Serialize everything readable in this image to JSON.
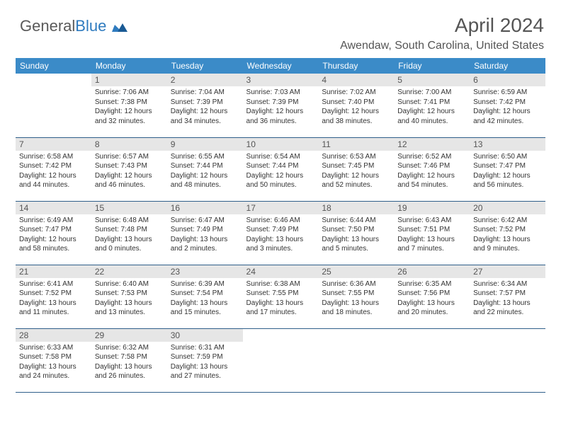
{
  "brand": {
    "part1": "General",
    "part2": "Blue"
  },
  "title": "April 2024",
  "location": "Awendaw, South Carolina, United States",
  "colors": {
    "header_bg": "#3b8bc8",
    "header_text": "#ffffff",
    "daynum_bg": "#e6e6e6",
    "border": "#2f5f8a",
    "text": "#333333"
  },
  "table": {
    "columns": [
      "Sunday",
      "Monday",
      "Tuesday",
      "Wednesday",
      "Thursday",
      "Friday",
      "Saturday"
    ],
    "rows": [
      [
        null,
        {
          "n": "1",
          "sr": "Sunrise: 7:06 AM",
          "ss": "Sunset: 7:38 PM",
          "dl": "Daylight: 12 hours and 32 minutes."
        },
        {
          "n": "2",
          "sr": "Sunrise: 7:04 AM",
          "ss": "Sunset: 7:39 PM",
          "dl": "Daylight: 12 hours and 34 minutes."
        },
        {
          "n": "3",
          "sr": "Sunrise: 7:03 AM",
          "ss": "Sunset: 7:39 PM",
          "dl": "Daylight: 12 hours and 36 minutes."
        },
        {
          "n": "4",
          "sr": "Sunrise: 7:02 AM",
          "ss": "Sunset: 7:40 PM",
          "dl": "Daylight: 12 hours and 38 minutes."
        },
        {
          "n": "5",
          "sr": "Sunrise: 7:00 AM",
          "ss": "Sunset: 7:41 PM",
          "dl": "Daylight: 12 hours and 40 minutes."
        },
        {
          "n": "6",
          "sr": "Sunrise: 6:59 AM",
          "ss": "Sunset: 7:42 PM",
          "dl": "Daylight: 12 hours and 42 minutes."
        }
      ],
      [
        {
          "n": "7",
          "sr": "Sunrise: 6:58 AM",
          "ss": "Sunset: 7:42 PM",
          "dl": "Daylight: 12 hours and 44 minutes."
        },
        {
          "n": "8",
          "sr": "Sunrise: 6:57 AM",
          "ss": "Sunset: 7:43 PM",
          "dl": "Daylight: 12 hours and 46 minutes."
        },
        {
          "n": "9",
          "sr": "Sunrise: 6:55 AM",
          "ss": "Sunset: 7:44 PM",
          "dl": "Daylight: 12 hours and 48 minutes."
        },
        {
          "n": "10",
          "sr": "Sunrise: 6:54 AM",
          "ss": "Sunset: 7:44 PM",
          "dl": "Daylight: 12 hours and 50 minutes."
        },
        {
          "n": "11",
          "sr": "Sunrise: 6:53 AM",
          "ss": "Sunset: 7:45 PM",
          "dl": "Daylight: 12 hours and 52 minutes."
        },
        {
          "n": "12",
          "sr": "Sunrise: 6:52 AM",
          "ss": "Sunset: 7:46 PM",
          "dl": "Daylight: 12 hours and 54 minutes."
        },
        {
          "n": "13",
          "sr": "Sunrise: 6:50 AM",
          "ss": "Sunset: 7:47 PM",
          "dl": "Daylight: 12 hours and 56 minutes."
        }
      ],
      [
        {
          "n": "14",
          "sr": "Sunrise: 6:49 AM",
          "ss": "Sunset: 7:47 PM",
          "dl": "Daylight: 12 hours and 58 minutes."
        },
        {
          "n": "15",
          "sr": "Sunrise: 6:48 AM",
          "ss": "Sunset: 7:48 PM",
          "dl": "Daylight: 13 hours and 0 minutes."
        },
        {
          "n": "16",
          "sr": "Sunrise: 6:47 AM",
          "ss": "Sunset: 7:49 PM",
          "dl": "Daylight: 13 hours and 2 minutes."
        },
        {
          "n": "17",
          "sr": "Sunrise: 6:46 AM",
          "ss": "Sunset: 7:49 PM",
          "dl": "Daylight: 13 hours and 3 minutes."
        },
        {
          "n": "18",
          "sr": "Sunrise: 6:44 AM",
          "ss": "Sunset: 7:50 PM",
          "dl": "Daylight: 13 hours and 5 minutes."
        },
        {
          "n": "19",
          "sr": "Sunrise: 6:43 AM",
          "ss": "Sunset: 7:51 PM",
          "dl": "Daylight: 13 hours and 7 minutes."
        },
        {
          "n": "20",
          "sr": "Sunrise: 6:42 AM",
          "ss": "Sunset: 7:52 PM",
          "dl": "Daylight: 13 hours and 9 minutes."
        }
      ],
      [
        {
          "n": "21",
          "sr": "Sunrise: 6:41 AM",
          "ss": "Sunset: 7:52 PM",
          "dl": "Daylight: 13 hours and 11 minutes."
        },
        {
          "n": "22",
          "sr": "Sunrise: 6:40 AM",
          "ss": "Sunset: 7:53 PM",
          "dl": "Daylight: 13 hours and 13 minutes."
        },
        {
          "n": "23",
          "sr": "Sunrise: 6:39 AM",
          "ss": "Sunset: 7:54 PM",
          "dl": "Daylight: 13 hours and 15 minutes."
        },
        {
          "n": "24",
          "sr": "Sunrise: 6:38 AM",
          "ss": "Sunset: 7:55 PM",
          "dl": "Daylight: 13 hours and 17 minutes."
        },
        {
          "n": "25",
          "sr": "Sunrise: 6:36 AM",
          "ss": "Sunset: 7:55 PM",
          "dl": "Daylight: 13 hours and 18 minutes."
        },
        {
          "n": "26",
          "sr": "Sunrise: 6:35 AM",
          "ss": "Sunset: 7:56 PM",
          "dl": "Daylight: 13 hours and 20 minutes."
        },
        {
          "n": "27",
          "sr": "Sunrise: 6:34 AM",
          "ss": "Sunset: 7:57 PM",
          "dl": "Daylight: 13 hours and 22 minutes."
        }
      ],
      [
        {
          "n": "28",
          "sr": "Sunrise: 6:33 AM",
          "ss": "Sunset: 7:58 PM",
          "dl": "Daylight: 13 hours and 24 minutes."
        },
        {
          "n": "29",
          "sr": "Sunrise: 6:32 AM",
          "ss": "Sunset: 7:58 PM",
          "dl": "Daylight: 13 hours and 26 minutes."
        },
        {
          "n": "30",
          "sr": "Sunrise: 6:31 AM",
          "ss": "Sunset: 7:59 PM",
          "dl": "Daylight: 13 hours and 27 minutes."
        },
        null,
        null,
        null,
        null
      ]
    ]
  }
}
